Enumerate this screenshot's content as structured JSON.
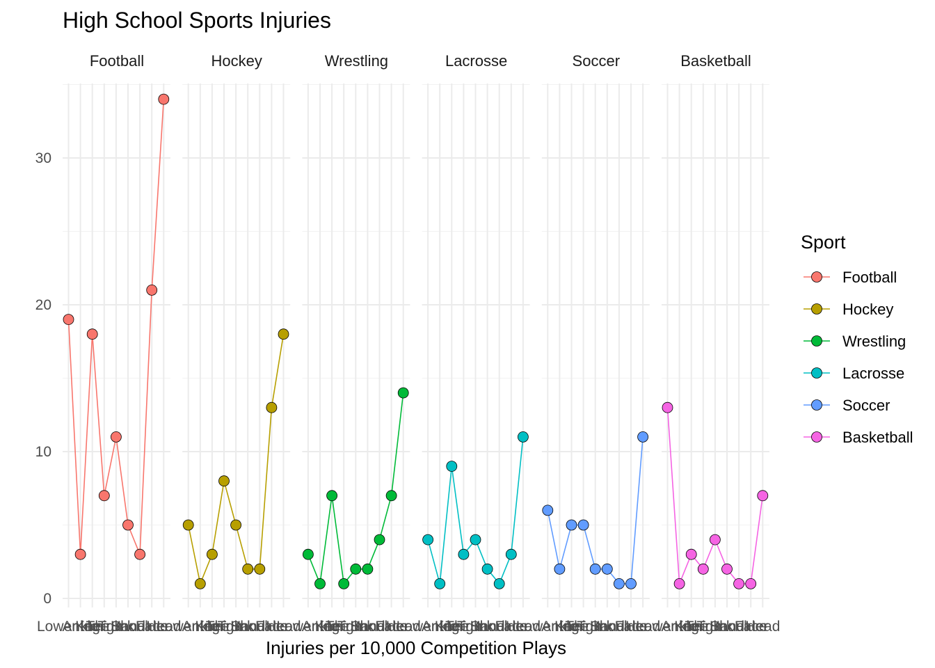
{
  "chart_data": {
    "type": "line",
    "title": "High School Sports Injuries",
    "xlabel": "Injuries per 10,000 Competition Plays",
    "ylabel": "",
    "ylim": [
      0,
      35
    ],
    "yticks": [
      0,
      10,
      20,
      30
    ],
    "categories": [
      "Lower leg",
      "Ankle",
      "Knee",
      "Thigh",
      "Trunk",
      "Hand",
      "Shoulder",
      "Face",
      "Head"
    ],
    "legend": {
      "title": "Sport",
      "position": "right"
    },
    "grid": true,
    "series": [
      {
        "name": "Football",
        "color": "#F8766D",
        "values": [
          19,
          3,
          18,
          7,
          11,
          5,
          3,
          21,
          34
        ]
      },
      {
        "name": "Hockey",
        "color": "#B79F00",
        "values": [
          5,
          1,
          3,
          8,
          5,
          2,
          2,
          13,
          18
        ]
      },
      {
        "name": "Wrestling",
        "color": "#00BA38",
        "values": [
          3,
          1,
          7,
          1,
          2,
          2,
          4,
          7,
          14
        ]
      },
      {
        "name": "Lacrosse",
        "color": "#00BFC4",
        "values": [
          4,
          1,
          9,
          3,
          4,
          2,
          1,
          3,
          11
        ]
      },
      {
        "name": "Soccer",
        "color": "#619CFF",
        "values": [
          6,
          2,
          5,
          5,
          2,
          2,
          1,
          1,
          11
        ]
      },
      {
        "name": "Basketball",
        "color": "#F564E3",
        "values": [
          13,
          1,
          3,
          2,
          4,
          2,
          1,
          1,
          7
        ]
      }
    ]
  }
}
